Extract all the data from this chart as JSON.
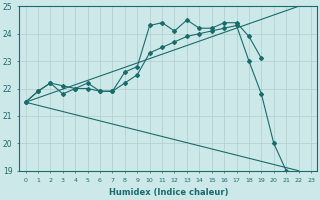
{
  "xlabel": "Humidex (Indice chaleur)",
  "ylabel": "",
  "bg_color": "#cde8e8",
  "grid_color": "#aecece",
  "line_color": "#1a6b6b",
  "xlim": [
    -0.5,
    23.5
  ],
  "ylim": [
    19,
    25
  ],
  "yticks": [
    19,
    20,
    21,
    22,
    23,
    24,
    25
  ],
  "xticks": [
    0,
    1,
    2,
    3,
    4,
    5,
    6,
    7,
    8,
    9,
    10,
    11,
    12,
    13,
    14,
    15,
    16,
    17,
    18,
    19,
    20,
    21,
    22,
    23
  ],
  "series": [
    {
      "x": [
        0,
        1,
        2,
        3,
        4,
        5,
        6,
        7,
        8,
        9,
        10,
        11,
        12,
        13,
        14,
        15,
        16,
        17,
        18,
        19
      ],
      "y": [
        21.5,
        21.9,
        22.2,
        22.1,
        22.0,
        22.2,
        21.9,
        21.9,
        22.6,
        22.8,
        24.3,
        24.4,
        24.1,
        24.5,
        24.2,
        24.2,
        24.4,
        24.4,
        23.9,
        23.1
      ],
      "marker": "D",
      "markersize": 2.0
    },
    {
      "x": [
        0,
        1,
        2,
        3,
        4,
        5,
        6,
        7,
        8,
        9,
        10,
        11,
        12,
        13,
        14,
        15,
        16,
        17,
        18,
        19,
        20,
        21,
        22
      ],
      "y": [
        21.5,
        21.9,
        22.2,
        21.8,
        22.0,
        22.0,
        21.9,
        21.9,
        22.2,
        22.5,
        23.3,
        23.5,
        23.7,
        23.9,
        24.0,
        24.1,
        24.2,
        24.3,
        23.0,
        21.8,
        20.0,
        19.0,
        null
      ],
      "marker": "D",
      "markersize": 2.0
    },
    {
      "x": [
        0,
        22
      ],
      "y": [
        21.5,
        25.0
      ],
      "marker": null,
      "markersize": 0
    },
    {
      "x": [
        0,
        22
      ],
      "y": [
        21.5,
        19.0
      ],
      "marker": null,
      "markersize": 0
    }
  ]
}
